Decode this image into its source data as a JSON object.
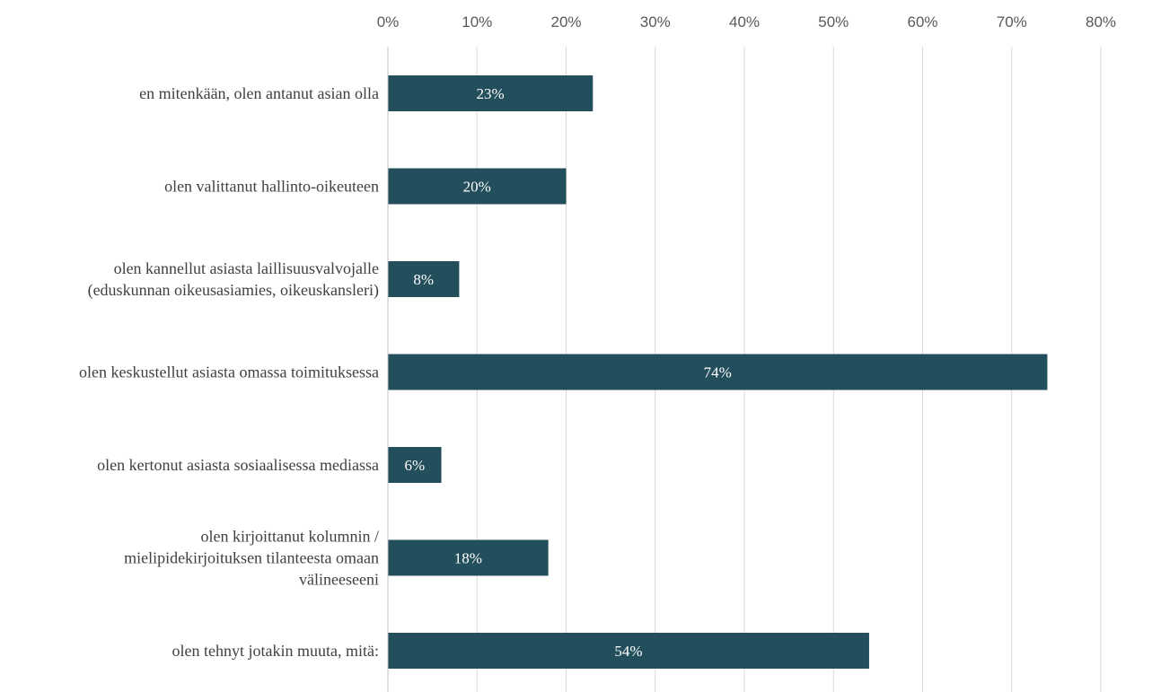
{
  "chart_data": {
    "type": "bar",
    "orientation": "horizontal",
    "title": "",
    "xlabel": "",
    "ylabel": "",
    "xlim": [
      0,
      80
    ],
    "x_ticks": [
      "0%",
      "10%",
      "20%",
      "30%",
      "40%",
      "50%",
      "60%",
      "70%",
      "80%"
    ],
    "x_axis_position": "top",
    "grid": true,
    "legend": "none",
    "bar_color": "#234e5b",
    "categories": [
      [
        "en mitenkään, olen antanut asian olla"
      ],
      [
        "olen valittanut hallinto-oikeuteen"
      ],
      [
        "olen kannellut asiasta laillisuusvalvojalle",
        "(eduskunnan oikeusasiamies, oikeuskansleri)"
      ],
      [
        "olen keskustellut asiasta omassa toimituksessa"
      ],
      [
        "olen kertonut asiasta sosiaalisessa mediassa"
      ],
      [
        "olen kirjoittanut kolumnin /",
        "mielipidekirjoituksen tilanteesta omaan",
        "välineeseeni"
      ],
      [
        "olen tehnyt jotakin muuta, mitä:"
      ]
    ],
    "values": [
      23,
      20,
      8,
      74,
      6,
      18,
      54
    ],
    "data_labels": [
      "23%",
      "20%",
      "8%",
      "74%",
      "6%",
      "18%",
      "54%"
    ]
  }
}
